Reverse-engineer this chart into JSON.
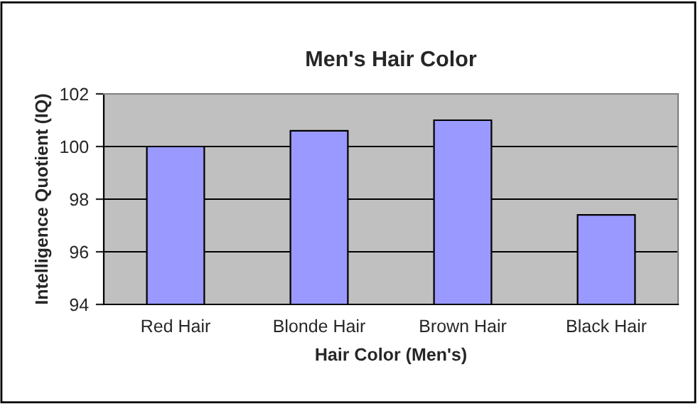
{
  "chart_data": {
    "type": "bar",
    "title": "Men's Hair Color",
    "xlabel": "Hair Color (Men's)",
    "ylabel": "Intelligence Quotient (IQ)",
    "categories": [
      "Red Hair",
      "Blonde Hair",
      "Brown Hair",
      "Black Hair"
    ],
    "values": [
      100,
      100.6,
      101,
      97.4
    ],
    "color": "#9999ff",
    "ylim": [
      94,
      102
    ],
    "yticks": [
      94,
      96,
      98,
      100,
      102
    ],
    "grid": "y"
  }
}
